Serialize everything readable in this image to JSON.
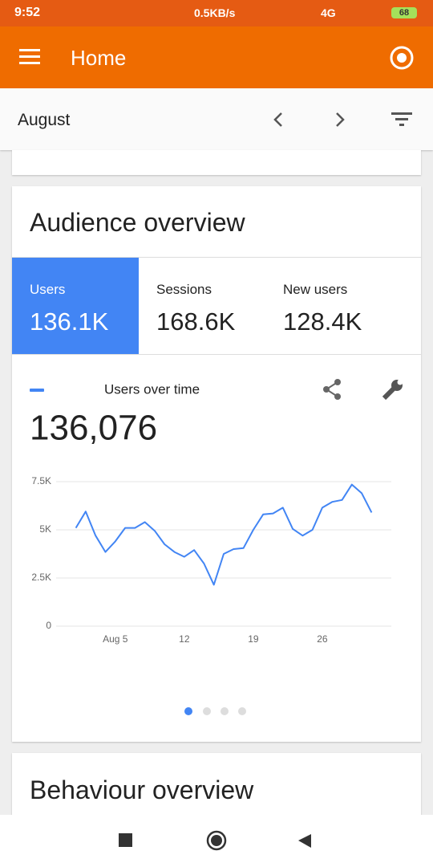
{
  "status_bar": {
    "time": "9:52",
    "speed": "0.5KB/s",
    "network": "4G",
    "battery": "68"
  },
  "app_bar": {
    "title": "Home"
  },
  "date_bar": {
    "period": "August"
  },
  "audience_card": {
    "title": "Audience overview",
    "tabs": [
      {
        "label": "Users",
        "value": "136.1K"
      },
      {
        "label": "Sessions",
        "value": "168.6K"
      },
      {
        "label": "New users",
        "value": "128.4K"
      }
    ]
  },
  "chart_data": {
    "type": "line",
    "headline": "136,076",
    "x": [
      1,
      2,
      3,
      4,
      5,
      6,
      7,
      8,
      9,
      10,
      11,
      12,
      13,
      14,
      15,
      16,
      17,
      18,
      19,
      20,
      21,
      22,
      23,
      24,
      25,
      26,
      27,
      28,
      29,
      30,
      31
    ],
    "xlim": [
      -1,
      33
    ],
    "xticks": [
      {
        "value": 5,
        "label": "Aug 5"
      },
      12,
      19,
      26
    ],
    "series": [
      {
        "name": "Users over time",
        "color": "#4285f4",
        "values": [
          5100,
          5950,
          4700,
          3850,
          4400,
          5100,
          5100,
          5400,
          4950,
          4250,
          3850,
          3600,
          3950,
          3250,
          2150,
          3750,
          4000,
          4050,
          5000,
          5800,
          5850,
          6150,
          5050,
          4700,
          5000,
          6150,
          6450,
          6550,
          7350,
          6900,
          5900
        ]
      }
    ],
    "ylim": [
      0,
      7500
    ],
    "yticks": [
      0,
      {
        "value": 2500,
        "label": "2.5K"
      },
      {
        "value": 5000,
        "label": "5K"
      },
      {
        "value": 7500,
        "label": "7.5K"
      }
    ],
    "grid": true
  },
  "behaviour_card": {
    "title": "Behaviour overview"
  }
}
